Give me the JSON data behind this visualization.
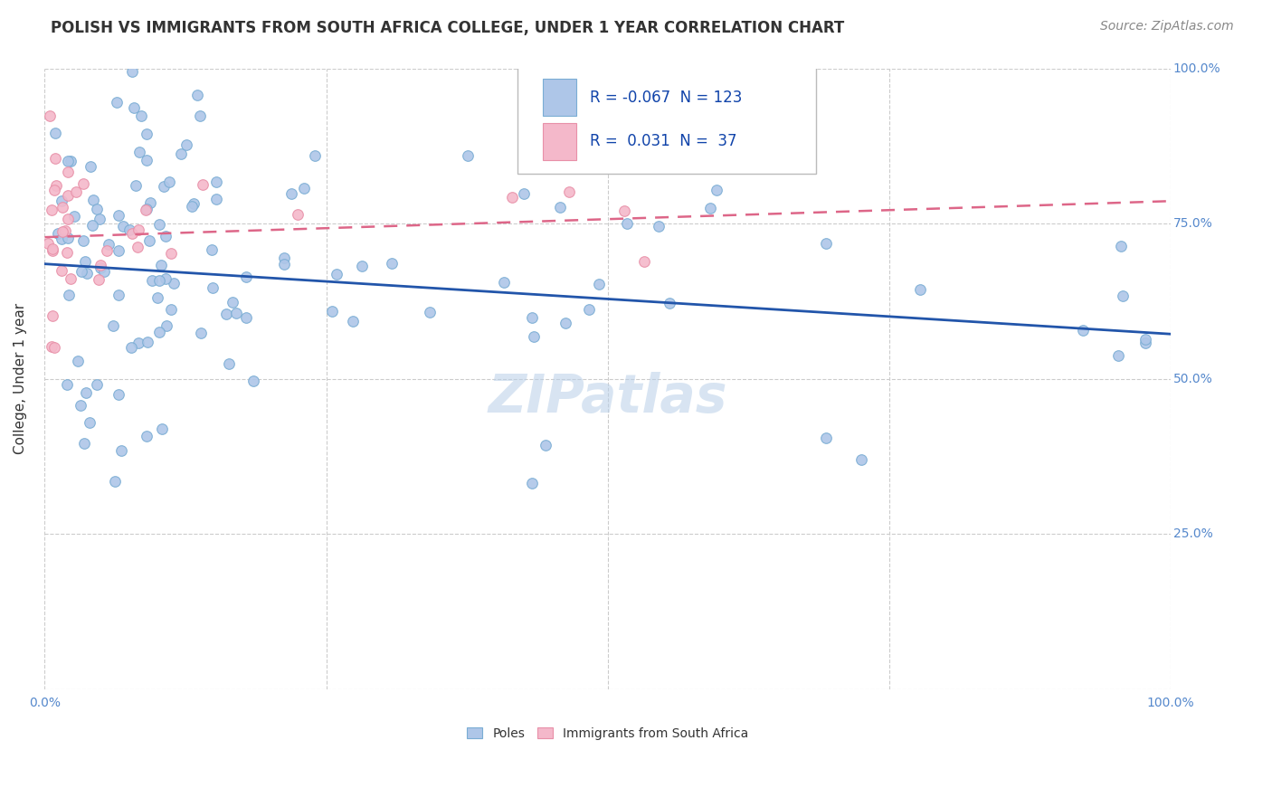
{
  "title": "POLISH VS IMMIGRANTS FROM SOUTH AFRICA COLLEGE, UNDER 1 YEAR CORRELATION CHART",
  "source": "Source: ZipAtlas.com",
  "ylabel": "College, Under 1 year",
  "watermark": "ZIPatlas",
  "legend_labels": [
    "Poles",
    "Immigrants from South Africa"
  ],
  "blue_R": -0.067,
  "blue_N": 123,
  "pink_R": 0.031,
  "pink_N": 37,
  "blue_color": "#aec6e8",
  "blue_edge": "#7aadd4",
  "pink_color": "#f4b8ca",
  "pink_edge": "#e890a8",
  "blue_line_color": "#2255aa",
  "pink_line_color": "#dd6688",
  "background_color": "#ffffff",
  "grid_color": "#cccccc",
  "title_color": "#333333",
  "axis_label_color": "#333333",
  "tick_color": "#5588cc",
  "xlim": [
    0.0,
    1.0
  ],
  "ylim": [
    0.0,
    1.0
  ],
  "xticks": [
    0.0,
    0.25,
    0.5,
    0.75,
    1.0
  ],
  "yticks": [
    0.0,
    0.25,
    0.5,
    0.75,
    1.0
  ],
  "xtick_labels_left": [
    "0.0%",
    "",
    "",
    "",
    ""
  ],
  "xtick_labels_right": [
    "",
    "",
    "",
    "",
    "100.0%"
  ],
  "ytick_labels_right": [
    "",
    "25.0%",
    "50.0%",
    "75.0%",
    "100.0%"
  ],
  "title_fontsize": 12,
  "source_fontsize": 10,
  "axis_label_fontsize": 11,
  "tick_fontsize": 10,
  "legend_fontsize": 12,
  "watermark_fontsize": 42,
  "marker_size": 70,
  "blue_trend_start_y": 0.685,
  "blue_trend_end_y": 0.572,
  "pink_trend_start_y": 0.728,
  "pink_trend_end_y": 0.76,
  "pink_trend_end_x": 0.55
}
